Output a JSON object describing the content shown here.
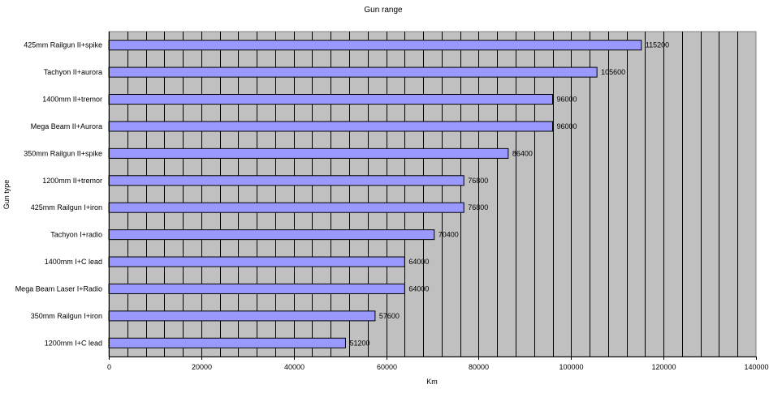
{
  "chart_data": {
    "type": "bar",
    "orientation": "horizontal",
    "title": "Gun range",
    "xlabel": "Km",
    "ylabel": "Gun type",
    "xlim": [
      0,
      140000
    ],
    "x_ticks": [
      0,
      20000,
      40000,
      60000,
      80000,
      100000,
      120000,
      140000
    ],
    "grid": "vertical",
    "legend": "none",
    "plot_background": "#c0c0c0",
    "bar_color": "#9999ff",
    "categories": [
      "425mm Railgun II+spike",
      "Tachyon II+aurora",
      "1400mm II+tremor",
      "Mega Beam II+Aurora",
      "350mm Railgun II+spike",
      "1200mm II+tremor",
      "425mm Railgun I+iron",
      "Tachyon I+radio",
      "1400mm I+C lead",
      "Mega Beam Laser I+Radio",
      "350mm Railgun I+iron",
      "1200mm I+C lead"
    ],
    "values": [
      115200,
      105600,
      96000,
      96000,
      86400,
      76800,
      76800,
      70400,
      64000,
      64000,
      57600,
      51200
    ]
  }
}
